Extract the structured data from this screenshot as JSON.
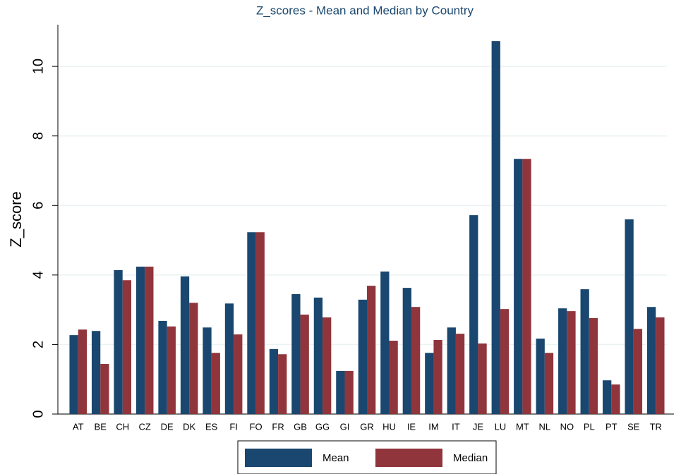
{
  "chart_data": {
    "type": "bar",
    "title": "Z_scores - Mean and Median by Country",
    "y_label": "Z_score",
    "categories": [
      "AT",
      "BE",
      "CH",
      "CZ",
      "DE",
      "DK",
      "ES",
      "FI",
      "FO",
      "FR",
      "GB",
      "GG",
      "GI",
      "GR",
      "HU",
      "IE",
      "IM",
      "IT",
      "JE",
      "LU",
      "MT",
      "NL",
      "NO",
      "PL",
      "PT",
      "SE",
      "TR"
    ],
    "series": [
      {
        "name": "Mean",
        "color": "#1a476f",
        "values": [
          2.27,
          2.39,
          4.14,
          4.24,
          2.68,
          3.96,
          2.49,
          3.18,
          5.23,
          1.87,
          3.45,
          3.35,
          1.24,
          3.29,
          4.1,
          3.63,
          1.76,
          2.49,
          5.72,
          10.73,
          7.34,
          2.17,
          3.04,
          3.59,
          0.97,
          5.6,
          3.08
        ]
      },
      {
        "name": "Median",
        "color": "#90353b",
        "values": [
          2.43,
          1.44,
          3.85,
          4.24,
          2.52,
          3.2,
          1.76,
          2.29,
          5.23,
          1.72,
          2.86,
          2.78,
          1.24,
          3.69,
          2.11,
          3.08,
          2.13,
          2.31,
          2.03,
          3.02,
          7.34,
          1.76,
          2.96,
          2.76,
          0.85,
          2.45,
          2.78
        ]
      }
    ],
    "ylim": [
      0,
      11.2
    ],
    "yticks": [
      0,
      2,
      4,
      6,
      8,
      10
    ],
    "grid": true,
    "legend": "bottom"
  }
}
